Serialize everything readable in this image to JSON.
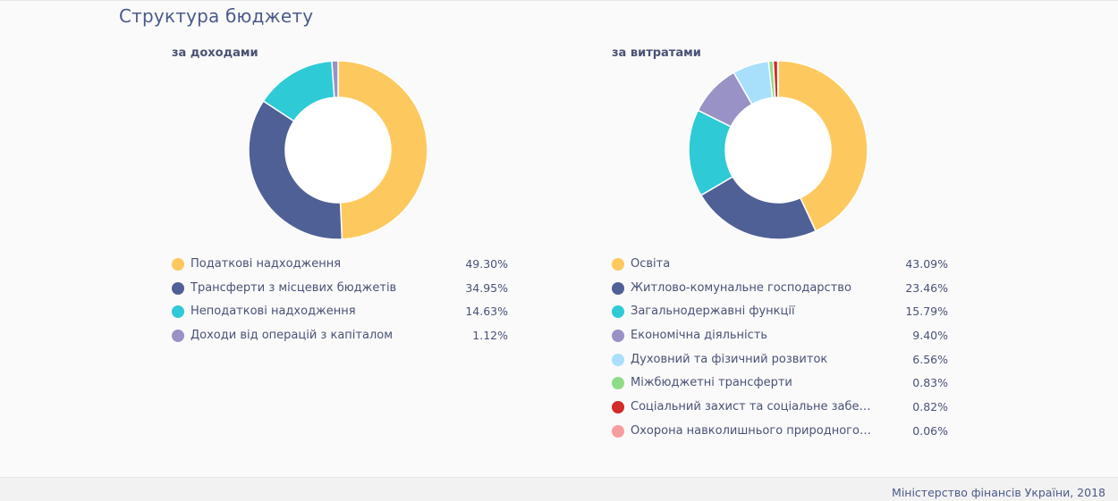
{
  "page": {
    "title": "Структура бюджету",
    "footer": "Міністерство фінансів України, 2018"
  },
  "chart_data": [
    {
      "type": "pie",
      "title": "за доходами",
      "categories": [
        "Податкові надходження",
        "Трансферти з місцевих бюджетів",
        "Неподаткові надходження",
        "Доходи від операцій з капіталом"
      ],
      "values": [
        49.3,
        34.95,
        14.63,
        1.12
      ],
      "labels": [
        "49.30%",
        "34.95%",
        "14.63%",
        "1.12%"
      ],
      "colors": [
        "#fdc95f",
        "#4f6096",
        "#2ecad6",
        "#9892c7"
      ]
    },
    {
      "type": "pie",
      "title": "за витратами",
      "categories": [
        "Освіта",
        "Житлово-комунальне господарство",
        "Загальнодержавні функції",
        "Економічна діяльність",
        "Духовний та фізичний розвиток",
        "Міжбюджетні трансферти",
        "Соціальний захист та соціальне забезпе...",
        "Охорона навколишнього природного с..."
      ],
      "values": [
        43.09,
        23.46,
        15.79,
        9.4,
        6.56,
        0.83,
        0.82,
        0.06
      ],
      "labels": [
        "43.09%",
        "23.46%",
        "15.79%",
        "9.40%",
        "6.56%",
        "0.83%",
        "0.82%",
        "0.06%"
      ],
      "colors": [
        "#fdc95f",
        "#4f6096",
        "#2ecad6",
        "#9892c7",
        "#a8e0fb",
        "#8fdc88",
        "#d32a2a",
        "#f79d9d"
      ]
    }
  ]
}
